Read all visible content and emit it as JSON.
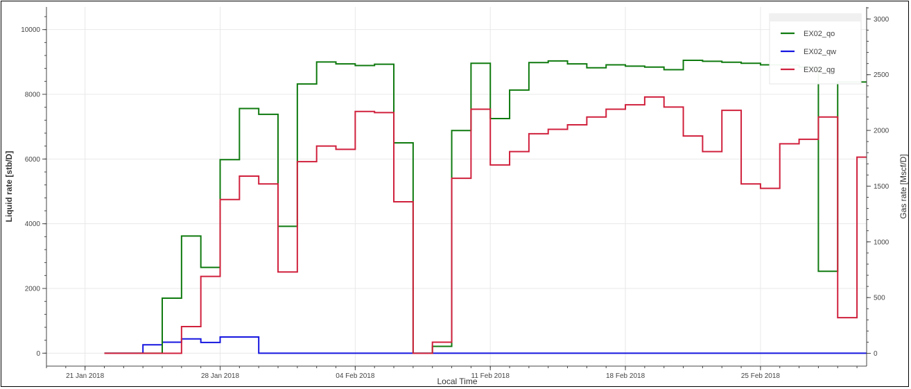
{
  "chart_data": {
    "type": "line",
    "step": true,
    "xlabel": "Local Time",
    "ylabel_left": "Liquid rate [stb/D]",
    "ylabel_right": "Gas rate [Mscf/D]",
    "ylim_left": [
      -400,
      10700
    ],
    "ylim_right": [
      -115,
      3108
    ],
    "xlim": [
      "2018-01-19",
      "2018-03-02T12:00"
    ],
    "x_ticks": [
      {
        "date": "2018-01-21",
        "label": "21 Jan 2018"
      },
      {
        "date": "2018-01-28",
        "label": "28 Jan 2018"
      },
      {
        "date": "2018-02-04",
        "label": "04 Feb 2018"
      },
      {
        "date": "2018-02-11",
        "label": "11 Feb 2018"
      },
      {
        "date": "2018-02-18",
        "label": "18 Feb 2018"
      },
      {
        "date": "2018-02-25",
        "label": "25 Feb 2018"
      }
    ],
    "y_ticks_left": [
      0,
      2000,
      4000,
      6000,
      8000,
      10000
    ],
    "y_ticks_right": [
      0,
      500,
      1000,
      1500,
      2000,
      2500,
      3000
    ],
    "grid": true,
    "legend_position": "top-right",
    "x": [
      "2018-01-22",
      "2018-01-23",
      "2018-01-24",
      "2018-01-25",
      "2018-01-26",
      "2018-01-27",
      "2018-01-28",
      "2018-01-29",
      "2018-01-30",
      "2018-01-31",
      "2018-02-01",
      "2018-02-02",
      "2018-02-03",
      "2018-02-04",
      "2018-02-05",
      "2018-02-06",
      "2018-02-07",
      "2018-02-08",
      "2018-02-09",
      "2018-02-10",
      "2018-02-11",
      "2018-02-12",
      "2018-02-13",
      "2018-02-14",
      "2018-02-15",
      "2018-02-16",
      "2018-02-17",
      "2018-02-18",
      "2018-02-19",
      "2018-02-20",
      "2018-02-21",
      "2018-02-22",
      "2018-02-23",
      "2018-02-24",
      "2018-02-25",
      "2018-02-26",
      "2018-02-27",
      "2018-02-28",
      "2018-03-01",
      "2018-03-02"
    ],
    "series": [
      {
        "name": "EX02_qo",
        "axis": "left",
        "color": "#0f7a0f",
        "values": [
          0,
          0,
          0,
          1700,
          3620,
          2650,
          5980,
          7560,
          7380,
          3920,
          8320,
          9000,
          8940,
          8890,
          8930,
          6500,
          0,
          210,
          6880,
          8960,
          7250,
          8130,
          8980,
          9030,
          8940,
          8820,
          8910,
          8870,
          8840,
          8760,
          9050,
          9020,
          8990,
          8960,
          8910,
          8900,
          8840,
          2530,
          8380,
          8380
        ]
      },
      {
        "name": "EX02_qw",
        "axis": "left",
        "color": "#1515e0",
        "values": [
          0,
          0,
          260,
          340,
          440,
          330,
          500,
          500,
          0,
          0,
          0,
          0,
          0,
          0,
          0,
          0,
          0,
          0,
          0,
          0,
          0,
          0,
          0,
          0,
          0,
          0,
          0,
          0,
          0,
          0,
          0,
          0,
          0,
          0,
          0,
          0,
          0,
          0,
          0,
          0
        ]
      },
      {
        "name": "EX02_qg",
        "axis": "right",
        "color": "#d0203c",
        "values": [
          0,
          0,
          0,
          0,
          240,
          690,
          1380,
          1590,
          1520,
          730,
          1720,
          1860,
          1830,
          2170,
          2160,
          1360,
          0,
          100,
          1570,
          2190,
          1690,
          1810,
          1970,
          2010,
          2050,
          2120,
          2190,
          2230,
          2300,
          2210,
          1950,
          1810,
          2180,
          1520,
          1480,
          1880,
          1920,
          2120,
          320,
          1760
        ]
      }
    ]
  }
}
